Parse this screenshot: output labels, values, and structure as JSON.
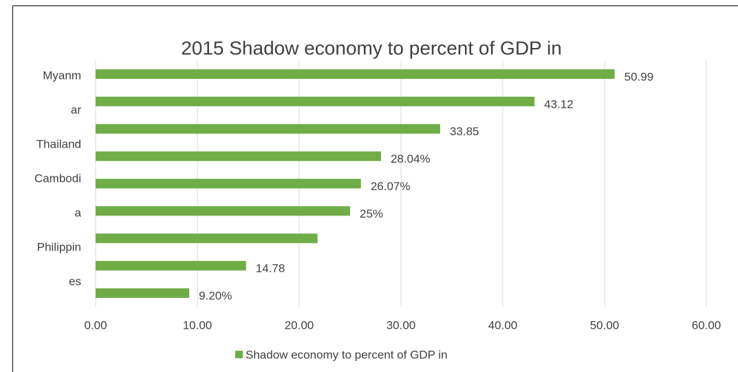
{
  "chart_data": {
    "type": "bar",
    "orientation": "horizontal",
    "title": "2015 Shadow economy to percent of GDP in",
    "categories": [
      "Myanm",
      "ar",
      "Thailand",
      "Cambodi",
      "a",
      "Philippin",
      "es",
      null,
      null
    ],
    "series": [
      {
        "name": "Shadow economy to percent of GDP in",
        "color": "#70ad47",
        "values": [
          50.99,
          43.12,
          33.85,
          28.04,
          26.07,
          25,
          21.8,
          14.78,
          9.2
        ],
        "value_labels": [
          "50.99",
          "43.12",
          "33.85",
          "28.04%",
          "26.07%",
          "25%",
          null,
          "14.78",
          "9.20%"
        ]
      }
    ],
    "xlim": [
      0,
      60
    ],
    "xticks": [
      {
        "value": 0,
        "label": "0.00"
      },
      {
        "value": 10,
        "label": "10.00"
      },
      {
        "value": 20,
        "label": "20.00"
      },
      {
        "value": 30,
        "label": "30.00"
      },
      {
        "value": 40,
        "label": "40.00"
      },
      {
        "value": 50,
        "label": "50.00"
      },
      {
        "value": 60,
        "label": "60.00"
      }
    ],
    "grid": true,
    "legend": "bottom"
  }
}
